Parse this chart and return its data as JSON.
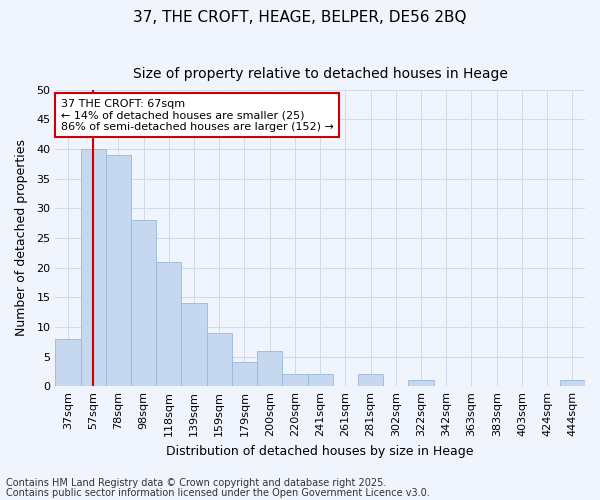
{
  "title": "37, THE CROFT, HEAGE, BELPER, DE56 2BQ",
  "subtitle": "Size of property relative to detached houses in Heage",
  "xlabel": "Distribution of detached houses by size in Heage",
  "ylabel": "Number of detached properties",
  "categories": [
    "37sqm",
    "57sqm",
    "78sqm",
    "98sqm",
    "118sqm",
    "139sqm",
    "159sqm",
    "179sqm",
    "200sqm",
    "220sqm",
    "241sqm",
    "261sqm",
    "281sqm",
    "302sqm",
    "322sqm",
    "342sqm",
    "363sqm",
    "383sqm",
    "403sqm",
    "424sqm",
    "444sqm"
  ],
  "values": [
    8,
    40,
    39,
    28,
    21,
    14,
    9,
    4,
    6,
    2,
    2,
    0,
    2,
    0,
    1,
    0,
    0,
    0,
    0,
    0,
    1
  ],
  "bar_color": "#c5d8f0",
  "bar_edge_color": "#9ab8d8",
  "reference_line_x": 1.5,
  "reference_line_color": "#cc0000",
  "annotation_text_line1": "37 THE CROFT: 67sqm",
  "annotation_text_line2": "← 14% of detached houses are smaller (25)",
  "annotation_text_line3": "86% of semi-detached houses are larger (152) →",
  "annotation_box_color": "#cc0000",
  "annotation_box_facecolor": "#ffffff",
  "ylim": [
    0,
    50
  ],
  "yticks": [
    0,
    5,
    10,
    15,
    20,
    25,
    30,
    35,
    40,
    45,
    50
  ],
  "footnote_line1": "Contains HM Land Registry data © Crown copyright and database right 2025.",
  "footnote_line2": "Contains public sector information licensed under the Open Government Licence v3.0.",
  "grid_color": "#d0daea",
  "background_color": "#f0f4fc",
  "plot_bg_color": "#f0f4fc",
  "title_fontsize": 11,
  "subtitle_fontsize": 10,
  "axis_label_fontsize": 9,
  "tick_fontsize": 8,
  "annotation_fontsize": 8,
  "footnote_fontsize": 7
}
